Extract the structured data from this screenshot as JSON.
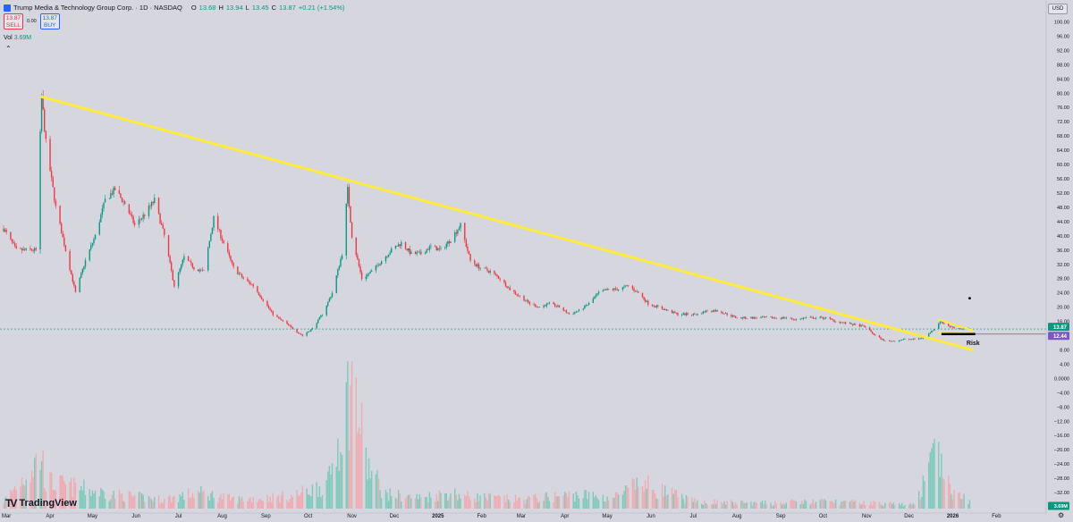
{
  "header": {
    "symbol_title": "Trump Media & Technology Group Corp. · 1D · NASDAQ",
    "ohlc": {
      "o_label": "O",
      "o": "13.68",
      "h_label": "H",
      "h": "13.94",
      "l_label": "L",
      "l": "13.45",
      "c_label": "C",
      "c": "13.87",
      "change": "+0.21 (+1.54%)"
    },
    "sell_price": "13.87",
    "sell_label": "SELL",
    "spread": "0.00",
    "buy_price": "13.87",
    "buy_label": "BUY",
    "vol_label": "Vol",
    "vol_value": "3.69M",
    "currency": "USD",
    "logo_text": "TradingView"
  },
  "colors": {
    "background": "#d6d6de",
    "up": "#089981",
    "down": "#f23645",
    "trendline": "#ffeb3b",
    "marker": "#7e57c2",
    "last": "#089981"
  },
  "chart_data": {
    "type": "candlestick",
    "title": "",
    "x_ticks": [
      "Mar",
      "Apr",
      "May",
      "Jun",
      "Jul",
      "Aug",
      "Sep",
      "Oct",
      "Nov",
      "Dec",
      "2025",
      "Feb",
      "Mar",
      "Apr",
      "May",
      "Jun",
      "Jul",
      "Aug",
      "Sep",
      "Oct",
      "Nov",
      "Dec",
      "2026",
      "Feb"
    ],
    "y_ticks": [
      "100.00",
      "96.00",
      "92.00",
      "88.00",
      "84.00",
      "80.00",
      "76.00",
      "72.00",
      "68.00",
      "64.00",
      "60.00",
      "56.00",
      "52.00",
      "48.00",
      "44.00",
      "40.00",
      "36.00",
      "32.00",
      "28.00",
      "24.00",
      "20.00",
      "16.00",
      "12.00",
      "8.00",
      "4.00",
      "0.0000",
      "−4.00",
      "−8.00",
      "−12.00",
      "−16.00",
      "−20.00",
      "−24.00",
      "−28.00",
      "−32.00",
      "−36.00"
    ],
    "ylim": [
      -38,
      102
    ],
    "price_path": [
      [
        "2024-02-28",
        42
      ],
      [
        "2024-03-08",
        36
      ],
      [
        "2024-03-22",
        36
      ],
      [
        "2024-03-26",
        79
      ],
      [
        "2024-03-29",
        66
      ],
      [
        "2024-04-05",
        48
      ],
      [
        "2024-04-12",
        36
      ],
      [
        "2024-04-19",
        24
      ],
      [
        "2024-04-26",
        33
      ],
      [
        "2024-05-03",
        40
      ],
      [
        "2024-05-10",
        50
      ],
      [
        "2024-05-17",
        53
      ],
      [
        "2024-05-24",
        49
      ],
      [
        "2024-05-31",
        43
      ],
      [
        "2024-06-07",
        46
      ],
      [
        "2024-06-14",
        50
      ],
      [
        "2024-06-21",
        40
      ],
      [
        "2024-06-28",
        26
      ],
      [
        "2024-07-05",
        34
      ],
      [
        "2024-07-12",
        31
      ],
      [
        "2024-07-19",
        30
      ],
      [
        "2024-07-26",
        45
      ],
      [
        "2024-08-02",
        38
      ],
      [
        "2024-08-09",
        31
      ],
      [
        "2024-08-16",
        28
      ],
      [
        "2024-08-23",
        26
      ],
      [
        "2024-08-30",
        22
      ],
      [
        "2024-09-06",
        18
      ],
      [
        "2024-09-13",
        16
      ],
      [
        "2024-09-20",
        14
      ],
      [
        "2024-09-27",
        12
      ],
      [
        "2024-10-04",
        14
      ],
      [
        "2024-10-11",
        18
      ],
      [
        "2024-10-18",
        24
      ],
      [
        "2024-10-25",
        35
      ],
      [
        "2024-10-29",
        53
      ],
      [
        "2024-11-01",
        40
      ],
      [
        "2024-11-08",
        28
      ],
      [
        "2024-11-15",
        30
      ],
      [
        "2024-11-22",
        33
      ],
      [
        "2024-11-29",
        36
      ],
      [
        "2024-12-06",
        38
      ],
      [
        "2024-12-13",
        35
      ],
      [
        "2024-12-20",
        35
      ],
      [
        "2024-12-27",
        37
      ],
      [
        "2025-01-03",
        36
      ],
      [
        "2025-01-10",
        39
      ],
      [
        "2025-01-17",
        43
      ],
      [
        "2025-01-24",
        33
      ],
      [
        "2025-01-31",
        31
      ],
      [
        "2025-02-07",
        30
      ],
      [
        "2025-02-14",
        28
      ],
      [
        "2025-02-21",
        25
      ],
      [
        "2025-02-28",
        23
      ],
      [
        "2025-03-07",
        21
      ],
      [
        "2025-03-14",
        20
      ],
      [
        "2025-03-21",
        21
      ],
      [
        "2025-03-28",
        20
      ],
      [
        "2025-04-04",
        18
      ],
      [
        "2025-04-11",
        19
      ],
      [
        "2025-04-18",
        21
      ],
      [
        "2025-04-25",
        24
      ],
      [
        "2025-05-02",
        25
      ],
      [
        "2025-05-09",
        25
      ],
      [
        "2025-05-16",
        26
      ],
      [
        "2025-05-23",
        24
      ],
      [
        "2025-05-30",
        21
      ],
      [
        "2025-06-06",
        20
      ],
      [
        "2025-06-13",
        19
      ],
      [
        "2025-06-20",
        18
      ],
      [
        "2025-06-27",
        18
      ],
      [
        "2025-07-04",
        18
      ],
      [
        "2025-07-11",
        19
      ],
      [
        "2025-07-18",
        19
      ],
      [
        "2025-07-25",
        18
      ],
      [
        "2025-08-01",
        17
      ],
      [
        "2025-08-08",
        17
      ],
      [
        "2025-08-15",
        17
      ],
      [
        "2025-08-22",
        17
      ],
      [
        "2025-08-29",
        17
      ],
      [
        "2025-09-05",
        17
      ],
      [
        "2025-09-12",
        16.5
      ],
      [
        "2025-09-19",
        17
      ],
      [
        "2025-09-26",
        17
      ],
      [
        "2025-10-03",
        17
      ],
      [
        "2025-10-10",
        16
      ],
      [
        "2025-10-17",
        15.5
      ],
      [
        "2025-10-24",
        15
      ],
      [
        "2025-10-31",
        14.5
      ],
      [
        "2025-11-07",
        12
      ],
      [
        "2025-11-14",
        10.5
      ],
      [
        "2025-11-21",
        10.5
      ],
      [
        "2025-11-28",
        11
      ],
      [
        "2025-12-05",
        11
      ],
      [
        "2025-12-12",
        11.5
      ],
      [
        "2025-12-19",
        14
      ],
      [
        "2025-12-23",
        16
      ],
      [
        "2025-12-30",
        14.5
      ],
      [
        "2026-01-06",
        14
      ],
      [
        "2026-01-13",
        13.87
      ]
    ],
    "volume_path": [
      [
        "2024-02-28",
        4
      ],
      [
        "2024-03-26",
        30
      ],
      [
        "2024-03-29",
        15
      ],
      [
        "2024-05-15",
        8
      ],
      [
        "2024-06-20",
        5
      ],
      [
        "2024-07-15",
        9
      ],
      [
        "2024-08-10",
        5
      ],
      [
        "2024-09-20",
        7
      ],
      [
        "2024-10-15",
        14
      ],
      [
        "2024-10-22",
        38
      ],
      [
        "2024-10-29",
        62
      ],
      [
        "2024-11-01",
        72
      ],
      [
        "2024-11-05",
        55
      ],
      [
        "2024-11-12",
        24
      ],
      [
        "2024-11-25",
        8
      ],
      [
        "2024-12-20",
        6
      ],
      [
        "2025-01-10",
        9
      ],
      [
        "2025-01-20",
        7
      ],
      [
        "2025-03-01",
        5
      ],
      [
        "2025-04-10",
        8
      ],
      [
        "2025-05-05",
        6
      ],
      [
        "2025-05-25",
        14
      ],
      [
        "2025-07-01",
        4
      ],
      [
        "2025-08-15",
        3
      ],
      [
        "2025-10-01",
        4
      ],
      [
        "2025-11-10",
        3
      ],
      [
        "2025-12-05",
        2
      ],
      [
        "2025-12-19",
        28
      ],
      [
        "2025-12-23",
        34
      ],
      [
        "2025-12-30",
        10
      ],
      [
        "2026-01-13",
        4
      ]
    ],
    "last_price": 13.87,
    "level_price": 12.44,
    "last_price_label": "13.87",
    "level_label": "12.44",
    "volume_label": "3.69M",
    "annotation": "Risk",
    "trendlines": [
      {
        "name": "long-term-downtrend",
        "from": [
          "2024-03-26",
          79
        ],
        "to": [
          "2026-01-15",
          8
        ]
      },
      {
        "name": "flag-upper",
        "from": [
          "2025-12-22",
          16.5
        ],
        "to": [
          "2026-01-15",
          13.5
        ]
      },
      {
        "name": "flag-lower",
        "from": [
          "2025-12-22",
          12.8
        ],
        "to": [
          "2026-01-15",
          12.7
        ]
      }
    ],
    "level_line": {
      "price": 12.44,
      "from": "2025-12-24",
      "to": "2026-01-17"
    },
    "target_dot": {
      "date": "2026-01-13",
      "price": 22.5
    },
    "grid": false,
    "legend": "none"
  }
}
